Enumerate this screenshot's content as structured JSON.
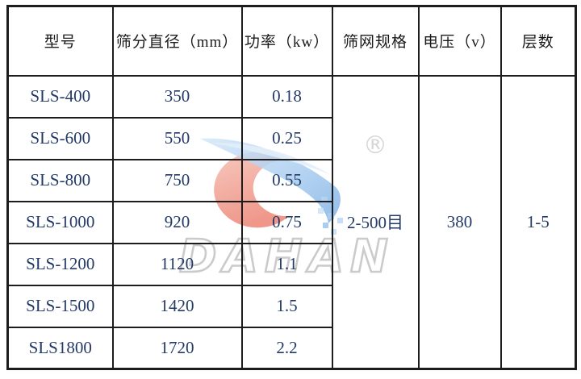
{
  "page": {
    "background": "#ffffff"
  },
  "colors": {
    "table_border": "#1c1c1c",
    "header_text": "#1a1a1a",
    "value_text": "#233a66",
    "watermark_gray": "#c6c6c6",
    "watermark_registered_gray": "#d6d6d6",
    "watermark_red": "#f2a196",
    "watermark_red_deep": "#ea8070",
    "watermark_blue": "#8fbce9",
    "watermark_blue_light": "#c9dff6"
  },
  "table": {
    "columns": [
      {
        "label": "型号"
      },
      {
        "label": "筛分直径（mm）"
      },
      {
        "label": "功率（kw）"
      },
      {
        "label": "筛网规格"
      },
      {
        "label": "电压（v）"
      },
      {
        "label": "层数"
      }
    ],
    "rows": [
      {
        "model": "SLS-400",
        "diameter": "350",
        "power": "0.18"
      },
      {
        "model": "SLS-600",
        "diameter": "550",
        "power": "0.25"
      },
      {
        "model": "SLS-800",
        "diameter": "750",
        "power": "0.55"
      },
      {
        "model": "SLS-1000",
        "diameter": "920",
        "power": "0.75"
      },
      {
        "model": "SLS-1200",
        "diameter": "1120",
        "power": "1.1"
      },
      {
        "model": "SLS-1500",
        "diameter": "1420",
        "power": "1.5"
      },
      {
        "model": "SLS1800",
        "diameter": "1720",
        "power": "2.2"
      }
    ],
    "merged": {
      "mesh_size": "2-500目",
      "voltage": "380",
      "layers": "1-5"
    }
  },
  "watermark": {
    "brand": "DAHAN",
    "registered_mark": "®"
  }
}
